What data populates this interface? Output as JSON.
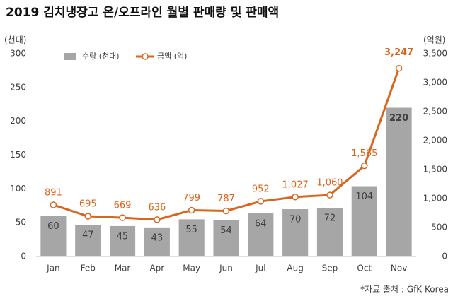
{
  "chart_data": {
    "type": "bar-line",
    "title": "2019 김치냉장고 온/오프라인 월별 판매량 및 판매액",
    "y_label": "(천대)",
    "y2_label": "(억원)",
    "source": "*자료 출처 : GfK Korea",
    "categories": [
      "Jan",
      "Feb",
      "Mar",
      "Apr",
      "May",
      "Jun",
      "Jul",
      "Aug",
      "Sep",
      "Oct",
      "Nov"
    ],
    "series": [
      {
        "name": "수량 (천대)",
        "color": "#a6a6a6",
        "type": "bar",
        "values": [
          60,
          47,
          45,
          43,
          55,
          54,
          64,
          70,
          72,
          104,
          220
        ]
      },
      {
        "name": "금액 (억)",
        "color": "#d9661f",
        "type": "line",
        "axis": "y2",
        "values": [
          891,
          695,
          669,
          636,
          799,
          787,
          952,
          1027,
          1060,
          1565,
          3247
        ],
        "value_labels": [
          "891",
          "695",
          "669",
          "636",
          "799",
          "787",
          "952",
          "1,027",
          "1,060",
          "1,565",
          "3,247"
        ]
      }
    ],
    "ylim": [
      0,
      300
    ],
    "yticks": [
      0,
      50,
      100,
      150,
      200,
      250,
      300
    ],
    "y2lim": [
      0,
      3500
    ],
    "y2ticks": [
      0,
      500,
      {
        "value": 1000,
        "label": "1,000"
      },
      {
        "value": 1500,
        "label": "1,500"
      },
      {
        "value": 2000,
        "label": "2,000"
      },
      {
        "value": 2500,
        "label": "2,500"
      },
      {
        "value": 3000,
        "label": "3,000"
      },
      {
        "value": 3500,
        "label": "3,500"
      }
    ],
    "grid": false,
    "legend": "top-left"
  }
}
